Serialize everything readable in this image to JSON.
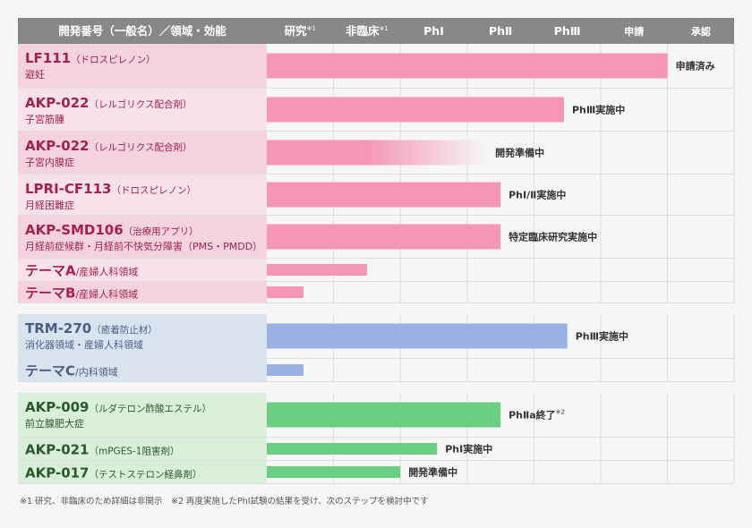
{
  "chart_data": {
    "type": "bar",
    "columns": [
      {
        "id": "name",
        "label": "開発番号（一般名）／領域・効能"
      },
      {
        "id": "kenkyu",
        "label": "研究",
        "sup": "※1"
      },
      {
        "id": "hirinsho",
        "label": "非臨床",
        "sup": "※1"
      },
      {
        "id": "ph1",
        "label": "PhⅠ"
      },
      {
        "id": "ph2",
        "label": "PhⅡ"
      },
      {
        "id": "ph3",
        "label": "PhⅢ"
      },
      {
        "id": "shinsei",
        "label": "申請"
      },
      {
        "id": "shonin",
        "label": "承認"
      }
    ],
    "groups": [
      {
        "name": "pink",
        "rows": [
          {
            "code": "LF111",
            "generic": "（ドロスピレノン）",
            "indication": "避妊",
            "progress": 6.0,
            "status": "申請済み",
            "gradient": false
          },
          {
            "code": "AKP-022",
            "generic": "（レルゴリクス配合剤）",
            "indication": "子宮筋腫",
            "progress": 4.45,
            "status": "PhⅢ実施中",
            "gradient": false
          },
          {
            "code": "AKP-022",
            "generic": "（レルゴリクス配合剤）",
            "indication": "子宮内膜症",
            "progress": 3.3,
            "status": "開発準備中",
            "gradient": true
          },
          {
            "code": "LPRI-CF113",
            "generic": "（ドロスピレノン）",
            "indication": "月経困難症",
            "progress": 3.5,
            "status": "PhⅠ/Ⅱ実施中",
            "gradient": false
          },
          {
            "code": "AKP-SMD106",
            "generic": "（治療用アプリ）",
            "indication": "月経前症候群・月経前不快気分障害（PMS・PMDD）",
            "progress": 3.5,
            "status": "特定臨床研究実施中",
            "gradient": false
          },
          {
            "code": "テーマA",
            "generic": "/産婦人科領域",
            "indication": "",
            "progress": 1.5,
            "status": "",
            "gradient": false
          },
          {
            "code": "テーマB",
            "generic": "/産婦人科領域",
            "indication": "",
            "progress": 0.55,
            "status": "",
            "gradient": false
          }
        ]
      },
      {
        "name": "blue",
        "rows": [
          {
            "code": "TRM-270",
            "generic": "（癒着防止材）",
            "indication": "消化器領域・産婦人科領域",
            "progress": 4.5,
            "status": "PhⅢ実施中",
            "gradient": false
          },
          {
            "code": "テーマC",
            "generic": "/内科領域",
            "indication": "",
            "progress": 0.55,
            "status": "",
            "gradient": false
          }
        ]
      },
      {
        "name": "green",
        "rows": [
          {
            "code": "AKP-009",
            "generic": "（ルダテロン酢酸エステル）",
            "indication": "前立腺肥大症",
            "progress": 3.5,
            "status": "PhⅡa終了",
            "status_sup": "※2",
            "gradient": false
          },
          {
            "code": "AKP-021",
            "generic": "（mPGES-1阻害剤）",
            "indication": "",
            "progress": 2.55,
            "status": "PhⅠ実施中",
            "gradient": false
          },
          {
            "code": "AKP-017",
            "generic": "（テストステロン経鼻剤）",
            "indication": "",
            "progress": 2.0,
            "status": "開発準備中",
            "gradient": false
          }
        ]
      }
    ],
    "colors": {
      "header_bg": "#888888",
      "header_text": "#ffffff",
      "grid": "#dedede",
      "pink_bar": "#f596b4",
      "pink_label_a": "#f4d3de",
      "pink_label_b": "#f8e2e9",
      "pink_code": "#a5214d",
      "blue_bar": "#99b1e3",
      "blue_label": "#d8e3ef",
      "blue_code": "#4b5d86",
      "green_bar": "#6bcf83",
      "green_label": "#d9efd9",
      "green_code": "#2a5a2c"
    }
  },
  "footnote": "※1 研究、非臨床のため詳細は非開示　※2 再度実施したPhⅠ試験の結果を受け、次のステップを検討中です"
}
